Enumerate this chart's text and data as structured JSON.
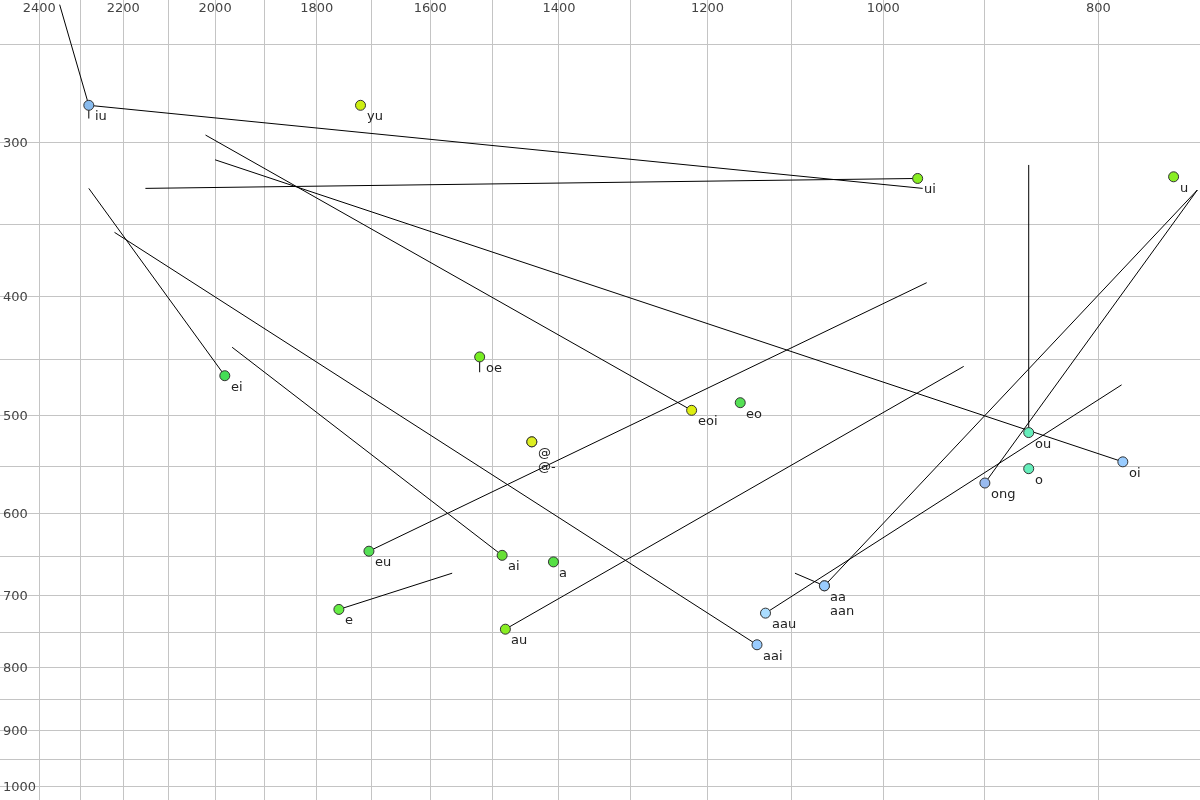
{
  "chart_data": {
    "type": "scatter",
    "log": "xy",
    "grid": true,
    "legend": false,
    "marker": "circle",
    "xlim": [
      2500,
      720
    ],
    "ylim": [
      1025,
      230
    ],
    "xticks": [
      2400,
      {
        "value": 2300,
        "label": null
      },
      2200,
      {
        "value": 2100,
        "label": null
      },
      2000,
      {
        "value": 1900,
        "label": null
      },
      1800,
      {
        "value": 1700,
        "label": null
      },
      1600,
      {
        "value": 1500,
        "label": null
      },
      1400,
      {
        "value": 1300,
        "label": null
      },
      1200,
      {
        "value": 1100,
        "label": null
      },
      1000,
      {
        "value": 900,
        "label": null
      },
      800
    ],
    "yticks": [
      {
        "value": 250,
        "label": null
      },
      300,
      {
        "value": 350,
        "label": null
      },
      400,
      {
        "value": 450,
        "label": null
      },
      500,
      {
        "value": 550,
        "label": null
      },
      600,
      {
        "value": 650,
        "label": null
      },
      700,
      {
        "value": 750,
        "label": null
      },
      800,
      {
        "value": 850,
        "label": null
      },
      900,
      {
        "value": 950,
        "label": null
      },
      1000
    ],
    "series": [
      {
        "type": "line",
        "marker": "none",
        "color": "#000000",
        "x": [
          2350,
          2280
        ],
        "values": [
          232,
          280
        ]
      },
      {
        "type": "line",
        "marker": "none",
        "color": "#000000",
        "x": [
          2280,
          960
        ],
        "values": [
          280,
          327
        ]
      },
      {
        "type": "line",
        "marker": "none",
        "color": "#000000",
        "x": [
          2280,
          2280
        ],
        "values": [
          280,
          287
        ]
      },
      {
        "type": "line",
        "marker": "none",
        "color": "#000000",
        "x": [
          2150,
          965
        ],
        "values": [
          327,
          321
        ]
      },
      {
        "type": "line",
        "marker": "none",
        "color": "#000000",
        "x": [
          2020,
          1220
        ],
        "values": [
          296,
          495
        ]
      },
      {
        "type": "line",
        "marker": "none",
        "color": "#000000",
        "x": [
          2000,
          780
        ],
        "values": [
          310,
          545
        ]
      },
      {
        "type": "line",
        "marker": "none",
        "color": "#000000",
        "x": [
          2280,
          1980
        ],
        "values": [
          327,
          464
        ]
      },
      {
        "type": "line",
        "marker": "none",
        "color": "#000000",
        "x": [
          2220,
          1140
        ],
        "values": [
          355,
          767
        ]
      },
      {
        "type": "line",
        "marker": "none",
        "color": "#000000",
        "x": [
          1965,
          1485
        ],
        "values": [
          440,
          649
        ]
      },
      {
        "type": "line",
        "marker": "none",
        "color": "#000000",
        "x": [
          1520,
          1520
        ],
        "values": [
          448,
          461
        ]
      },
      {
        "type": "line",
        "marker": "none",
        "color": "#000000",
        "x": [
          1705,
          956
        ],
        "values": [
          644,
          390
        ]
      },
      {
        "type": "line",
        "marker": "none",
        "color": "#000000",
        "x": [
          1480,
          920
        ],
        "values": [
          745,
          456
        ]
      },
      {
        "type": "line",
        "marker": "none",
        "color": "#000000",
        "x": [
          1759,
          1564
        ],
        "values": [
          718,
          671
        ]
      },
      {
        "type": "line",
        "marker": "none",
        "color": "#000000",
        "x": [
          1130,
          781
        ],
        "values": [
          723,
          472
        ]
      },
      {
        "type": "line",
        "marker": "none",
        "color": "#000000",
        "x": [
          1096,
          1063
        ],
        "values": [
          671,
          687
        ]
      },
      {
        "type": "line",
        "marker": "none",
        "color": "#000000",
        "x": [
          1063,
          722
        ],
        "values": [
          687,
          328
        ]
      },
      {
        "type": "line",
        "marker": "none",
        "color": "#000000",
        "x": [
          900,
          722
        ],
        "values": [
          567,
          328
        ]
      },
      {
        "type": "line",
        "marker": "none",
        "color": "#000000",
        "x": [
          860,
          860
        ],
        "values": [
          516,
          313
        ]
      },
      {
        "name": "iu",
        "color": "#88bbee",
        "x": [
          2280
        ],
        "values": [
          280
        ]
      },
      {
        "name": "yu",
        "color": "#ccee11",
        "x": [
          1720
        ],
        "values": [
          280
        ]
      },
      {
        "name": "ui",
        "color": "#88ee22",
        "x": [
          965
        ],
        "values": [
          321
        ]
      },
      {
        "name": "u",
        "color": "#88ee22",
        "x": [
          740
        ],
        "values": [
          320
        ]
      },
      {
        "name": "ei",
        "color": "#44dd55",
        "x": [
          1980
        ],
        "values": [
          464
        ]
      },
      {
        "name": "oe",
        "color": "#77ee22",
        "x": [
          1520
        ],
        "values": [
          448
        ]
      },
      {
        "name": "eoi",
        "color": "#ddee11",
        "x": [
          1220
        ],
        "values": [
          495
        ]
      },
      {
        "name": "eo",
        "color": "#55e055",
        "x": [
          1160
        ],
        "values": [
          488
        ]
      },
      {
        "name": "@",
        "color": "#ddee22",
        "x": [
          1440
        ],
        "values": [
          525
        ]
      },
      {
        "name": "@-",
        "color": "#ddee22",
        "x": [
          1440
        ],
        "values": [
          525
        ]
      },
      {
        "name": "ou",
        "color": "#66eebb",
        "x": [
          860
        ],
        "values": [
          516
        ]
      },
      {
        "name": "o",
        "color": "#66eebb",
        "x": [
          860
        ],
        "values": [
          552
        ]
      },
      {
        "name": "oi",
        "color": "#99ccff",
        "x": [
          780
        ],
        "values": [
          545
        ]
      },
      {
        "name": "ong",
        "color": "#99bbf0",
        "x": [
          900
        ],
        "values": [
          567
        ]
      },
      {
        "name": "eu",
        "color": "#55e055",
        "x": [
          1705
        ],
        "values": [
          644
        ]
      },
      {
        "name": "ai",
        "color": "#66e033",
        "x": [
          1485
        ],
        "values": [
          649
        ]
      },
      {
        "name": "a",
        "color": "#55e044",
        "x": [
          1408
        ],
        "values": [
          657
        ]
      },
      {
        "name": "aa",
        "color": "#99ccff",
        "x": [
          1063
        ],
        "values": [
          687
        ]
      },
      {
        "name": "aan",
        "color": "#99ccff",
        "x": [
          1063
        ],
        "values": [
          687
        ]
      },
      {
        "name": "aau",
        "color": "#aaddff",
        "x": [
          1130
        ],
        "values": [
          723
        ]
      },
      {
        "name": "e",
        "color": "#66ee44",
        "x": [
          1759
        ],
        "values": [
          718
        ]
      },
      {
        "name": "au",
        "color": "#88ee22",
        "x": [
          1480
        ],
        "values": [
          745
        ]
      },
      {
        "name": "aai",
        "color": "#99ccff",
        "x": [
          1140
        ],
        "values": [
          767
        ]
      }
    ]
  }
}
